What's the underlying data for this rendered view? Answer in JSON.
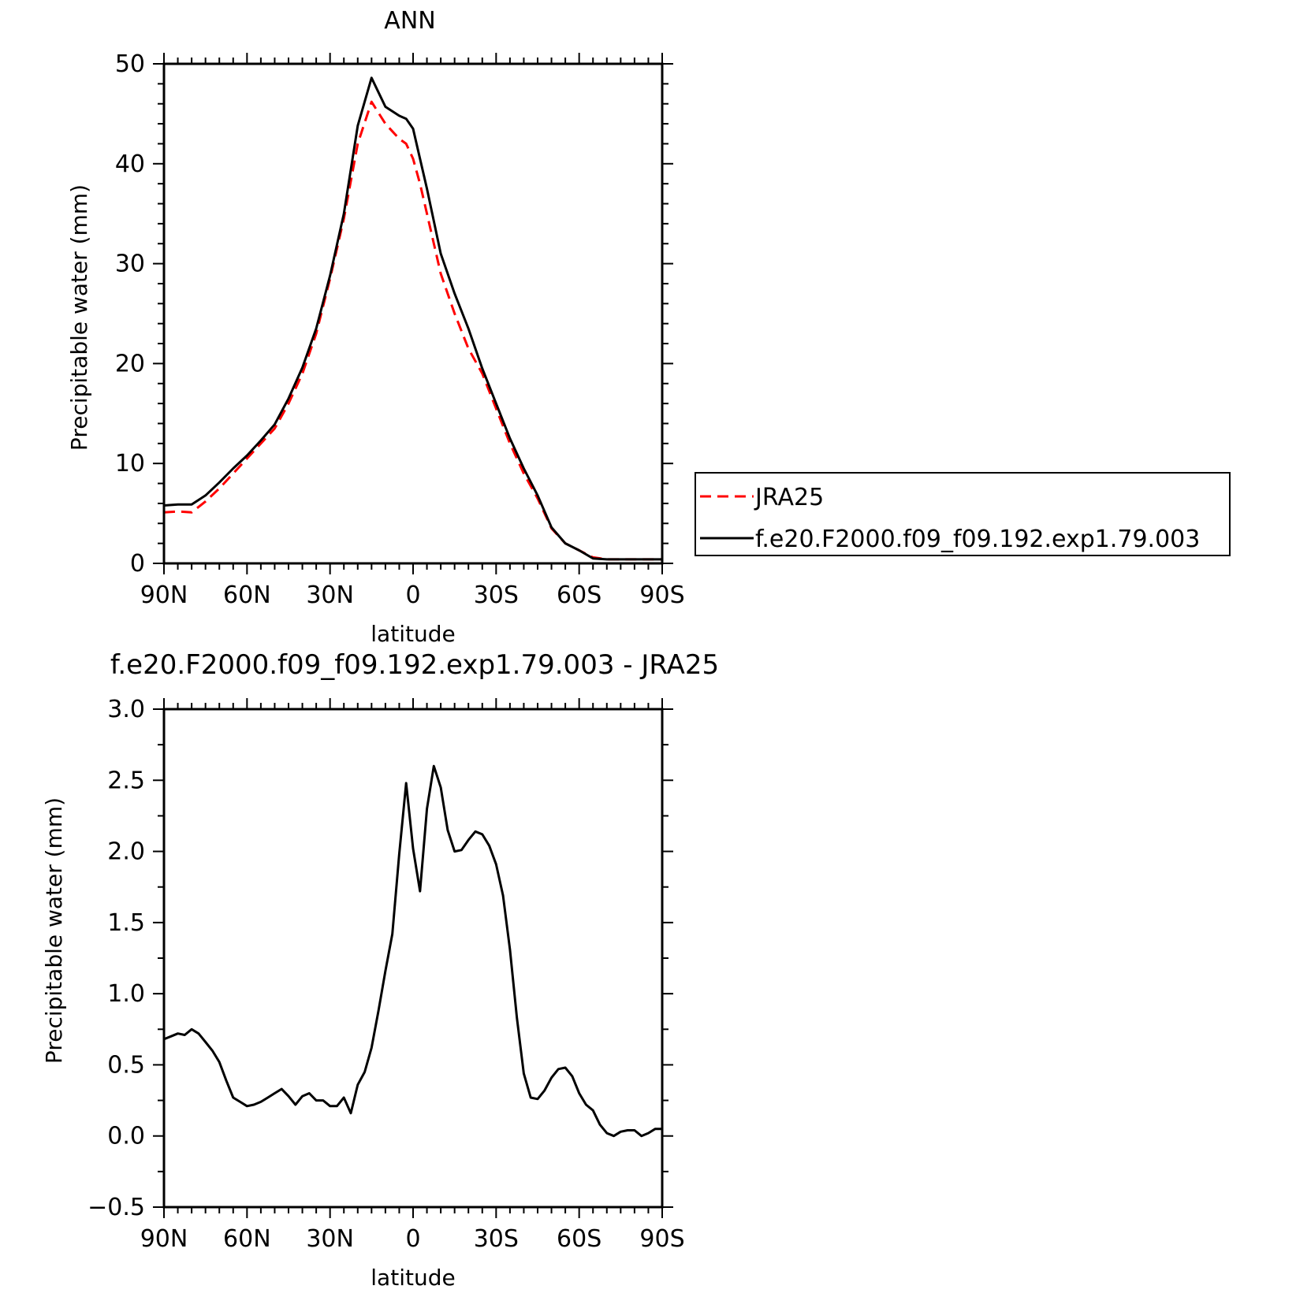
{
  "chart_data": [
    {
      "type": "line",
      "title": "ANN",
      "xlabel": "latitude",
      "ylabel": "Precipitable water (mm)",
      "xlim": [
        90,
        -90
      ],
      "ylim": [
        0,
        50
      ],
      "xticks": [
        90,
        60,
        30,
        0,
        -30,
        -60,
        -90
      ],
      "xtick_labels": [
        "90N",
        "60N",
        "30N",
        "0",
        "30S",
        "60S",
        "90S"
      ],
      "yticks": [
        0,
        10,
        20,
        30,
        40,
        50
      ],
      "ytick_labels": [
        "0",
        "10",
        "20",
        "30",
        "40",
        "50"
      ],
      "legend_position": "right",
      "x": [
        90,
        85,
        80,
        75,
        70,
        65,
        60,
        55,
        50,
        45,
        40,
        35,
        30,
        25,
        20,
        15,
        10,
        5,
        2.5,
        0,
        -2.5,
        -5,
        -10,
        -15,
        -20,
        -25,
        -30,
        -35,
        -40,
        -45,
        -50,
        -55,
        -60,
        -65,
        -70,
        -75,
        -80,
        -85,
        -90
      ],
      "series": [
        {
          "name": "JRA25",
          "color": "#ff0000",
          "dash": "dashed",
          "values": [
            5.1,
            5.2,
            5.1,
            6.2,
            7.5,
            9.0,
            10.5,
            12.0,
            13.5,
            16.0,
            19.0,
            23.0,
            28.5,
            34.5,
            42.0,
            46.2,
            44.0,
            42.5,
            42.0,
            40.5,
            38.0,
            35.0,
            29.0,
            25.0,
            21.5,
            19.0,
            15.5,
            12.0,
            9.0,
            6.5,
            3.5,
            2.0,
            1.3,
            0.6,
            0.4,
            0.4,
            0.4,
            0.4,
            0.4
          ]
        },
        {
          "name": "f.e20.F2000.f09_f09.192.exp1.79.003",
          "color": "#000000",
          "dash": "solid",
          "values": [
            5.8,
            5.9,
            5.9,
            6.8,
            8.1,
            9.5,
            10.8,
            12.3,
            13.9,
            16.5,
            19.6,
            23.5,
            28.8,
            35.0,
            43.8,
            48.6,
            45.7,
            44.8,
            44.5,
            43.5,
            40.5,
            37.5,
            31.0,
            27.0,
            23.5,
            19.5,
            16.0,
            12.5,
            9.5,
            6.8,
            3.6,
            2.0,
            1.3,
            0.5,
            0.4,
            0.4,
            0.4,
            0.4,
            0.4
          ]
        }
      ]
    },
    {
      "type": "line",
      "title": "f.e20.F2000.f09_f09.192.exp1.79.003 - JRA25",
      "xlabel": "latitude",
      "ylabel": "Precipitable water (mm)",
      "xlim": [
        90,
        -90
      ],
      "ylim": [
        -0.5,
        3.0
      ],
      "xticks": [
        90,
        60,
        30,
        0,
        -30,
        -60,
        -90
      ],
      "xtick_labels": [
        "90N",
        "60N",
        "30N",
        "0",
        "30S",
        "60S",
        "90S"
      ],
      "yticks": [
        -0.5,
        0.0,
        0.5,
        1.0,
        1.5,
        2.0,
        2.5,
        3.0
      ],
      "ytick_labels": [
        "−0.5",
        "0.0",
        "0.5",
        "1.0",
        "1.5",
        "2.0",
        "2.5",
        "3.0"
      ],
      "x": [
        90,
        87.5,
        85,
        82.5,
        80,
        77.5,
        75,
        72.5,
        70,
        67.5,
        65,
        62.5,
        60,
        57.5,
        55,
        52.5,
        50,
        47.5,
        45,
        42.5,
        40,
        37.5,
        35,
        32.5,
        30,
        27.5,
        25,
        22.5,
        20,
        17.5,
        15,
        12.5,
        10,
        7.5,
        5,
        2.5,
        0,
        -2.5,
        -5,
        -7.5,
        -10,
        -12.5,
        -15,
        -17.5,
        -20,
        -22.5,
        -25,
        -27.5,
        -30,
        -32.5,
        -35,
        -37.5,
        -40,
        -42.5,
        -45,
        -47.5,
        -50,
        -52.5,
        -55,
        -57.5,
        -60,
        -62.5,
        -65,
        -67.5,
        -70,
        -72.5,
        -75,
        -77.5,
        -80,
        -82.5,
        -85,
        -87.5,
        -90
      ],
      "series": [
        {
          "color": "#000000",
          "dash": "solid",
          "values": [
            0.68,
            0.7,
            0.72,
            0.71,
            0.75,
            0.72,
            0.66,
            0.6,
            0.52,
            0.39,
            0.27,
            0.24,
            0.21,
            0.22,
            0.24,
            0.27,
            0.3,
            0.33,
            0.28,
            0.22,
            0.28,
            0.3,
            0.25,
            0.25,
            0.21,
            0.21,
            0.27,
            0.16,
            0.36,
            0.45,
            0.62,
            0.88,
            1.16,
            1.42,
            1.98,
            2.48,
            2.02,
            1.72,
            2.3,
            2.6,
            2.45,
            2.15,
            2.0,
            2.01,
            2.08,
            2.14,
            2.12,
            2.04,
            1.91,
            1.69,
            1.31,
            0.83,
            0.44,
            0.27,
            0.26,
            0.32,
            0.41,
            0.47,
            0.48,
            0.42,
            0.3,
            0.22,
            0.18,
            0.08,
            0.02,
            0.0,
            0.03,
            0.04,
            0.04,
            0.0,
            0.02,
            0.05,
            0.05
          ]
        }
      ]
    }
  ]
}
